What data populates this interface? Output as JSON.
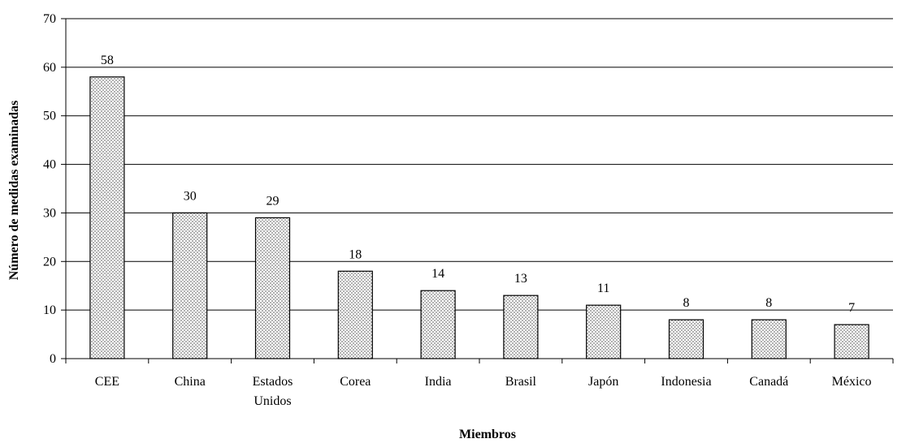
{
  "chart_data": {
    "type": "bar",
    "title": "",
    "xlabel": "Miembros",
    "ylabel": "Número de medidas examinadas",
    "categories": [
      "CEE",
      "China",
      "Estados Unidos",
      "Corea",
      "India",
      "Brasil",
      "Japón",
      "Indonesia",
      "Canadá",
      "México"
    ],
    "category_lines": [
      [
        "CEE"
      ],
      [
        "China"
      ],
      [
        "Estados",
        "Unidos"
      ],
      [
        "Corea"
      ],
      [
        "India"
      ],
      [
        "Brasil"
      ],
      [
        "Japón"
      ],
      [
        "Indonesia"
      ],
      [
        "Canadá"
      ],
      [
        "México"
      ]
    ],
    "values": [
      58,
      30,
      29,
      18,
      14,
      13,
      11,
      8,
      8,
      7
    ],
    "ylim": [
      0,
      70
    ],
    "yticks": [
      0,
      10,
      20,
      30,
      40,
      50,
      60,
      70
    ],
    "grid": true,
    "legend": "none",
    "bar_fill": "dotted gray pattern",
    "colors": {
      "bar_dots": "#7a7a7a",
      "bar_background": "#ffffff",
      "grid": "#000000",
      "axis": "#000000"
    }
  }
}
